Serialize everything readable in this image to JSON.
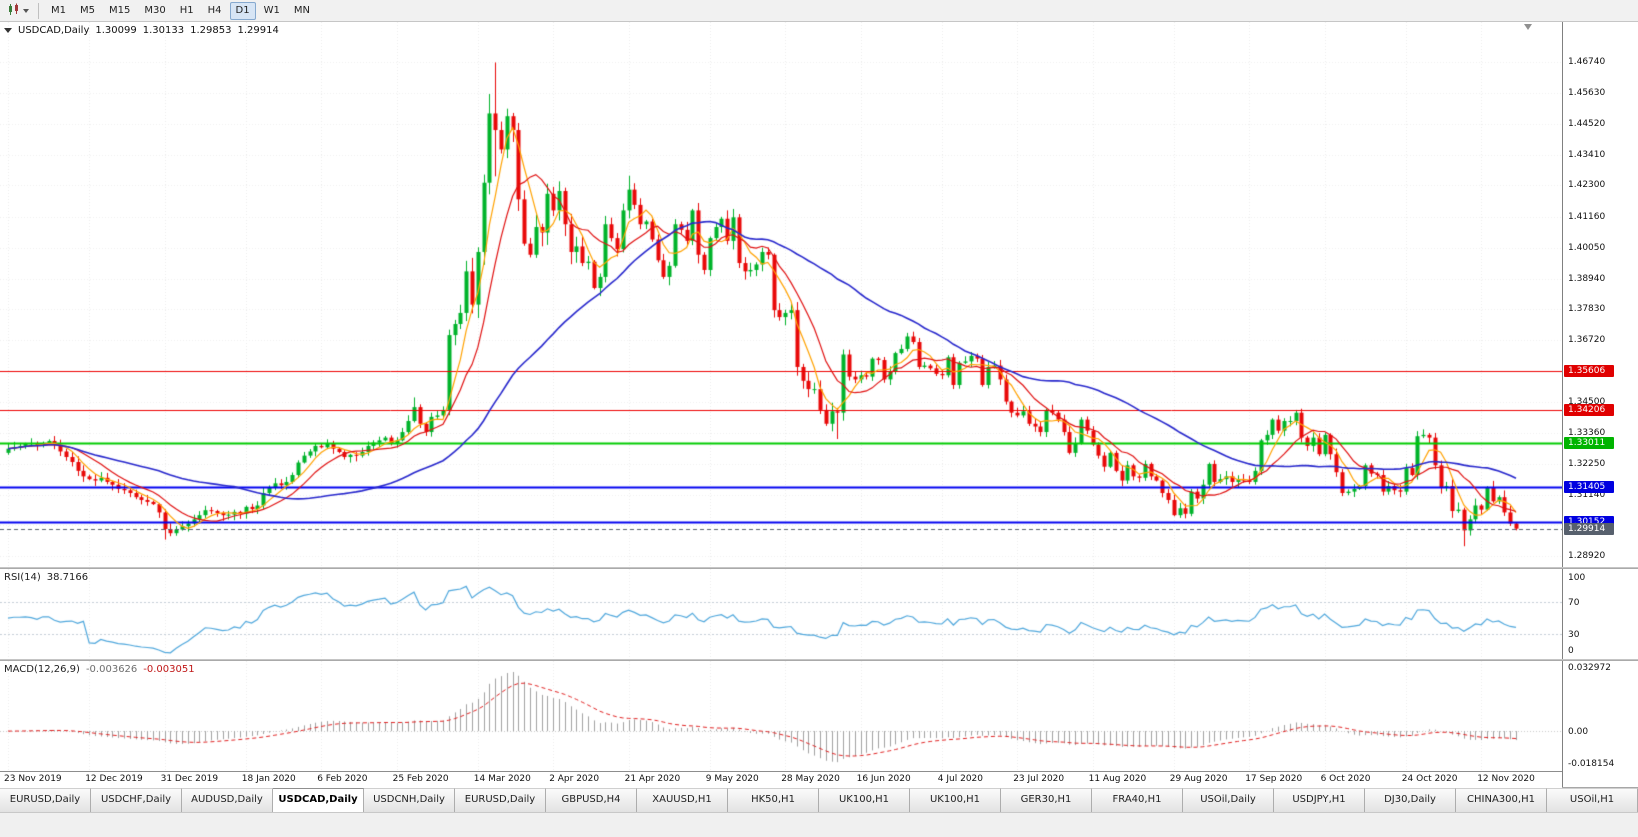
{
  "toolbar": {
    "timeframes": [
      "M1",
      "M5",
      "M15",
      "M30",
      "H1",
      "H4",
      "D1",
      "W1",
      "MN"
    ],
    "active_timeframe": "D1"
  },
  "chart_data": {
    "type": "candlestick+indicators",
    "symbol_title": "USDCAD,Daily",
    "ohlc": {
      "open": "1.30099",
      "high": "1.30133",
      "low": "1.29853",
      "close": "1.29914"
    },
    "main": {
      "price_range": [
        1.2853,
        1.482
      ],
      "y_ticks": [
        "1.46740",
        "1.45630",
        "1.44520",
        "1.43410",
        "1.42300",
        "1.41160",
        "1.40050",
        "1.38940",
        "1.37830",
        "1.36720",
        "1.35610",
        "1.34500",
        "1.33360",
        "1.32250",
        "1.31140",
        "1.30030",
        "1.28920"
      ],
      "x_labels": [
        "23 Nov 2019",
        "12 Dec 2019",
        "31 Dec 2019",
        "18 Jan 2020",
        "6 Feb 2020",
        "25 Feb 2020",
        "14 Mar 2020",
        "2 Apr 2020",
        "21 Apr 2020",
        "9 May 2020",
        "28 May 2020",
        "16 Jun 2020",
        "4 Jul 2020",
        "23 Jul 2020",
        "11 Aug 2020",
        "29 Aug 2020",
        "17 Sep 2020",
        "6 Oct 2020",
        "24 Oct 2020",
        "12 Nov 2020"
      ],
      "x_label_bar_indices": [
        0,
        14,
        27,
        41,
        54,
        67,
        81,
        94,
        107,
        121,
        134,
        147,
        161,
        174,
        187,
        201,
        214,
        227,
        241,
        254
      ],
      "up_color": "#00b32b",
      "down_color": "#e80909",
      "closes": [
        1.328,
        1.3285,
        1.329,
        1.3297,
        1.33,
        1.3292,
        1.33,
        1.3308,
        1.3295,
        1.327,
        1.325,
        1.3232,
        1.32,
        1.318,
        1.317,
        1.3165,
        1.3175,
        1.316,
        1.315,
        1.3135,
        1.313,
        1.312,
        1.3105,
        1.3095,
        1.3088,
        1.308,
        1.305,
        1.299,
        1.2975,
        1.2988,
        1.3,
        1.301,
        1.3025,
        1.304,
        1.3058,
        1.3055,
        1.3048,
        1.304,
        1.3042,
        1.3052,
        1.3046,
        1.307,
        1.3062,
        1.3075,
        1.312,
        1.314,
        1.3155,
        1.3148,
        1.316,
        1.3185,
        1.323,
        1.3255,
        1.327,
        1.329,
        1.3285,
        1.33,
        1.328,
        1.3268,
        1.325,
        1.3258,
        1.3255,
        1.3268,
        1.329,
        1.3302,
        1.331,
        1.332,
        1.33,
        1.331,
        1.334,
        1.338,
        1.343,
        1.337,
        1.334,
        1.3395,
        1.34,
        1.342,
        1.369,
        1.373,
        1.377,
        1.392,
        1.38,
        1.399,
        1.424,
        1.449,
        1.443,
        1.436,
        1.448,
        1.443,
        1.418,
        1.402,
        1.398,
        1.408,
        1.406,
        1.42,
        1.414,
        1.421,
        1.409,
        1.399,
        1.401,
        1.395,
        1.3955,
        1.386,
        1.39,
        1.409,
        1.404,
        1.4,
        1.414,
        1.4215,
        1.416,
        1.409,
        1.41,
        1.4035,
        1.396,
        1.39,
        1.394,
        1.409,
        1.407,
        1.403,
        1.414,
        1.398,
        1.3925,
        1.404,
        1.408,
        1.411,
        1.403,
        1.4115,
        1.395,
        1.392,
        1.3925,
        1.3945,
        1.399,
        1.398,
        1.378,
        1.3755,
        1.377,
        1.378,
        1.3575,
        1.3525,
        1.3495,
        1.3495,
        1.342,
        1.337,
        1.3415,
        1.341,
        1.362,
        1.354,
        1.353,
        1.3545,
        1.354,
        1.3605,
        1.36,
        1.353,
        1.356,
        1.3625,
        1.364,
        1.3685,
        1.3665,
        1.3575,
        1.358,
        1.357,
        1.355,
        1.3545,
        1.361,
        1.351,
        1.359,
        1.3595,
        1.3615,
        1.3605,
        1.351,
        1.3575,
        1.358,
        1.353,
        1.345,
        1.341,
        1.34,
        1.3415,
        1.337,
        1.336,
        1.334,
        1.342,
        1.341,
        1.3385,
        1.334,
        1.3265,
        1.33,
        1.3385,
        1.3345,
        1.3295,
        1.3255,
        1.3215,
        1.3265,
        1.32,
        1.3165,
        1.322,
        1.318,
        1.3175,
        1.3225,
        1.318,
        1.3165,
        1.312,
        1.3095,
        1.304,
        1.3065,
        1.3045,
        1.3125,
        1.31,
        1.315,
        1.3225,
        1.316,
        1.317,
        1.318,
        1.316,
        1.317,
        1.3165,
        1.316,
        1.32,
        1.331,
        1.333,
        1.3385,
        1.3345,
        1.338,
        1.338,
        1.341,
        1.332,
        1.329,
        1.332,
        1.326,
        1.333,
        1.326,
        1.3195,
        1.312,
        1.3125,
        1.3135,
        1.3145,
        1.322,
        1.319,
        1.3185,
        1.3125,
        1.3145,
        1.313,
        1.3125,
        1.321,
        1.3185,
        1.3325,
        1.333,
        1.332,
        1.322,
        1.314,
        1.3145,
        1.3055,
        1.306,
        1.2985,
        1.3025,
        1.3075,
        1.306,
        1.314,
        1.309,
        1.3105,
        1.305,
        1.301,
        1.29914
      ],
      "special_bars": {
        "27": {
          "l": 1.2952
        },
        "70": {
          "h": 1.3465
        },
        "83": {
          "h": 1.456
        },
        "84": {
          "h": 1.4674,
          "l": 1.4263
        },
        "101": {
          "l": 1.3855
        },
        "107": {
          "h": 1.4265
        },
        "143": {
          "l": 1.3315
        },
        "222": {
          "h": 1.342
        },
        "251": {
          "l": 1.2928
        },
        "260": {
          "o": 1.30099,
          "h": 1.30133,
          "l": 1.29853,
          "c": 1.29914
        }
      },
      "moving_averages": [
        {
          "name": "fast",
          "period": 5,
          "color": "#ffa200"
        },
        {
          "name": "medium",
          "period": 10,
          "color": "#e01010"
        },
        {
          "name": "slow",
          "period": 40,
          "color": "#2727cc"
        }
      ],
      "h_lines": [
        {
          "price": 1.35606,
          "label": "1.35606",
          "color": "#ee0000",
          "badge_color": "#e00000",
          "width": 1
        },
        {
          "price": 1.34206,
          "label": "1.34206",
          "color": "#ee0000",
          "badge_color": "#e00000",
          "width": 1
        },
        {
          "price": 1.33011,
          "label": "1.33011",
          "color": "#00cc00",
          "badge_color": "#00b400",
          "width": 2
        },
        {
          "price": 1.31405,
          "label": "1.31405",
          "color": "#0000f0",
          "badge_color": "#0000e0",
          "width": 2
        },
        {
          "price": 1.30152,
          "label": "1.30152",
          "color": "#0000f0",
          "badge_color": "#0000e0",
          "width": 2
        }
      ],
      "bid": {
        "price": 1.29914,
        "label": "1.29914",
        "color": "#57606d"
      }
    },
    "rsi": {
      "label": "RSI(14)",
      "value": "38.7166",
      "period": 14,
      "range": [
        0,
        110
      ],
      "scale": [
        {
          "v": 100,
          "label": "100"
        },
        {
          "v": 70,
          "label": "70"
        },
        {
          "v": 30,
          "label": "30"
        },
        {
          "v": 0,
          "label": "0"
        }
      ],
      "guide_levels": [
        70,
        30
      ],
      "color": "#4fa7dc"
    },
    "macd": {
      "label": "MACD(12,26,9)",
      "main_value": "-0.003626",
      "signal_value": "-0.003051",
      "fast": 12,
      "slow": 26,
      "signal": 9,
      "range": [
        -0.0205,
        0.036
      ],
      "scale": [
        {
          "v": 0.032972,
          "label": "0.032972"
        },
        {
          "v": 0,
          "label": "0.00"
        },
        {
          "v": -0.018154,
          "label": "-0.018154"
        }
      ],
      "histogram_color": "#a0a0a0",
      "signal_color": "#e02020"
    }
  },
  "bottom_tabs": {
    "active_index": 3,
    "tabs": [
      "EURUSD,Daily",
      "USDCHF,Daily",
      "AUDUSD,Daily",
      "USDCAD,Daily",
      "USDCNH,Daily",
      "EURUSD,Daily",
      "GBPUSD,H4",
      "XAUUSD,H1",
      "HK50,H1",
      "UK100,H1",
      "UK100,H1",
      "GER30,H1",
      "FRA40,H1",
      "USOil,Daily",
      "USDJPY,H1",
      "DJ30,Daily",
      "CHINA300,H1",
      "USOil,H1"
    ]
  }
}
